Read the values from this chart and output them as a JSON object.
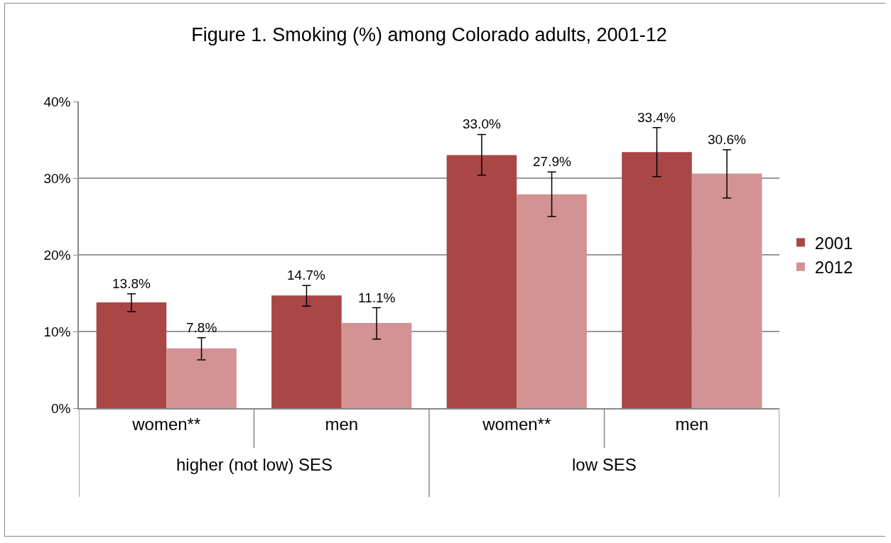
{
  "chart_data": {
    "type": "bar",
    "title": "Figure 1. Smoking (%) among Colorado adults, 2001-12",
    "categories": [
      "women**",
      "men",
      "women**",
      "men"
    ],
    "annotations": [
      "higher (not low) SES",
      "low SES"
    ],
    "series": [
      {
        "name": "2001",
        "color": "#a94646",
        "values": [
          13.8,
          14.7,
          33.0,
          33.4
        ],
        "errors": [
          [
            12.6,
            14.9
          ],
          [
            13.3,
            16.0
          ],
          [
            30.4,
            35.7
          ],
          [
            30.2,
            36.6
          ]
        ],
        "value_labels": [
          "13.8%",
          "14.7%",
          "33.0%",
          "33.4%"
        ]
      },
      {
        "name": "2012",
        "color": "#d39293",
        "values": [
          7.8,
          11.1,
          27.9,
          30.6
        ],
        "errors": [
          [
            6.3,
            9.2
          ],
          [
            9.0,
            13.1
          ],
          [
            25.0,
            30.8
          ],
          [
            27.4,
            33.7
          ]
        ],
        "value_labels": [
          "7.8%",
          "11.1%",
          "27.9%",
          "30.6%"
        ]
      }
    ],
    "ylim": [
      0,
      40
    ],
    "yticks": [
      {
        "value": 0,
        "label": "0%"
      },
      {
        "value": 10,
        "label": "10%"
      },
      {
        "value": 20,
        "label": "20%"
      },
      {
        "value": 30,
        "label": "30%"
      },
      {
        "value": 40,
        "label": "40%"
      }
    ],
    "grid": "y",
    "legend": "right"
  }
}
